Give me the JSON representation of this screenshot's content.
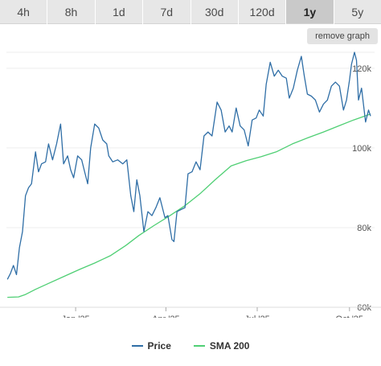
{
  "tabs": [
    {
      "label": "4h",
      "active": false
    },
    {
      "label": "8h",
      "active": false
    },
    {
      "label": "1d",
      "active": false
    },
    {
      "label": "7d",
      "active": false
    },
    {
      "label": "30d",
      "active": false
    },
    {
      "label": "120d",
      "active": false
    },
    {
      "label": "1y",
      "active": true
    },
    {
      "label": "5y",
      "active": false
    }
  ],
  "remove_graph_label": "remove graph",
  "colors": {
    "price": "#2f6ea6",
    "sma": "#4fcf74",
    "grid": "#eeeeee",
    "axis": "#555555"
  },
  "chart_data": {
    "type": "line",
    "x_ticks": [
      "Jan '25",
      "Apr '25",
      "Jul '25",
      "Oct '25"
    ],
    "y_ticks": [
      "60k",
      "80k",
      "100k",
      "120k"
    ],
    "ylim": [
      60000,
      124000
    ],
    "series": [
      {
        "name": "Price",
        "color": "#2f6ea6",
        "points": [
          [
            "2024-10-25",
            67000
          ],
          [
            "2024-10-28",
            68500
          ],
          [
            "2024-10-31",
            70500
          ],
          [
            "2024-11-03",
            68200
          ],
          [
            "2024-11-06",
            75000
          ],
          [
            "2024-11-09",
            79000
          ],
          [
            "2024-11-12",
            88000
          ],
          [
            "2024-11-15",
            90000
          ],
          [
            "2024-11-18",
            91000
          ],
          [
            "2024-11-22",
            99000
          ],
          [
            "2024-11-25",
            94000
          ],
          [
            "2024-11-28",
            96000
          ],
          [
            "2024-12-02",
            96500
          ],
          [
            "2024-12-05",
            101000
          ],
          [
            "2024-12-09",
            97000
          ],
          [
            "2024-12-13",
            101000
          ],
          [
            "2024-12-17",
            106000
          ],
          [
            "2024-12-20",
            96000
          ],
          [
            "2024-12-24",
            98000
          ],
          [
            "2024-12-27",
            94500
          ],
          [
            "2024-12-30",
            92500
          ],
          [
            "2025-01-03",
            98000
          ],
          [
            "2025-01-07",
            97000
          ],
          [
            "2025-01-10",
            94000
          ],
          [
            "2025-01-13",
            91000
          ],
          [
            "2025-01-16",
            100000
          ],
          [
            "2025-01-20",
            106000
          ],
          [
            "2025-01-24",
            105000
          ],
          [
            "2025-01-28",
            102000
          ],
          [
            "2025-02-01",
            101000
          ],
          [
            "2025-02-03",
            98000
          ],
          [
            "2025-02-07",
            96500
          ],
          [
            "2025-02-12",
            97000
          ],
          [
            "2025-02-17",
            96000
          ],
          [
            "2025-02-21",
            97000
          ],
          [
            "2025-02-25",
            88000
          ],
          [
            "2025-02-28",
            84000
          ],
          [
            "2025-03-03",
            92000
          ],
          [
            "2025-03-06",
            88000
          ],
          [
            "2025-03-10",
            79000
          ],
          [
            "2025-03-14",
            84000
          ],
          [
            "2025-03-18",
            83000
          ],
          [
            "2025-03-22",
            85000
          ],
          [
            "2025-03-26",
            87500
          ],
          [
            "2025-03-31",
            82500
          ],
          [
            "2025-04-03",
            83000
          ],
          [
            "2025-04-07",
            77000
          ],
          [
            "2025-04-09",
            76500
          ],
          [
            "2025-04-12",
            84000
          ],
          [
            "2025-04-16",
            84500
          ],
          [
            "2025-04-20",
            85000
          ],
          [
            "2025-04-23",
            93500
          ],
          [
            "2025-04-27",
            94000
          ],
          [
            "2025-05-01",
            96500
          ],
          [
            "2025-05-05",
            94500
          ],
          [
            "2025-05-09",
            103000
          ],
          [
            "2025-05-13",
            104000
          ],
          [
            "2025-05-17",
            103000
          ],
          [
            "2025-05-22",
            111500
          ],
          [
            "2025-05-26",
            109500
          ],
          [
            "2025-05-30",
            104000
          ],
          [
            "2025-06-03",
            105500
          ],
          [
            "2025-06-06",
            104000
          ],
          [
            "2025-06-10",
            110000
          ],
          [
            "2025-06-14",
            105500
          ],
          [
            "2025-06-18",
            104500
          ],
          [
            "2025-06-22",
            100500
          ],
          [
            "2025-06-26",
            107000
          ],
          [
            "2025-06-30",
            107500
          ],
          [
            "2025-07-03",
            109500
          ],
          [
            "2025-07-07",
            108000
          ],
          [
            "2025-07-10",
            116000
          ],
          [
            "2025-07-14",
            121500
          ],
          [
            "2025-07-18",
            118000
          ],
          [
            "2025-07-22",
            119500
          ],
          [
            "2025-07-26",
            118000
          ],
          [
            "2025-07-30",
            117500
          ],
          [
            "2025-08-02",
            112500
          ],
          [
            "2025-08-06",
            115000
          ],
          [
            "2025-08-10",
            119500
          ],
          [
            "2025-08-14",
            123000
          ],
          [
            "2025-08-17",
            118000
          ],
          [
            "2025-08-20",
            113500
          ],
          [
            "2025-08-24",
            113000
          ],
          [
            "2025-08-28",
            112000
          ],
          [
            "2025-09-01",
            109000
          ],
          [
            "2025-09-05",
            111000
          ],
          [
            "2025-09-09",
            112000
          ],
          [
            "2025-09-13",
            115500
          ],
          [
            "2025-09-17",
            116500
          ],
          [
            "2025-09-21",
            115500
          ],
          [
            "2025-09-25",
            109500
          ],
          [
            "2025-09-28",
            112000
          ],
          [
            "2025-10-01",
            117000
          ],
          [
            "2025-10-03",
            121000
          ],
          [
            "2025-10-06",
            124000
          ],
          [
            "2025-10-08",
            122000
          ],
          [
            "2025-10-10",
            112000
          ],
          [
            "2025-10-13",
            115000
          ],
          [
            "2025-10-17",
            106500
          ],
          [
            "2025-10-20",
            109500
          ],
          [
            "2025-10-22",
            108000
          ]
        ]
      },
      {
        "name": "SMA 200",
        "color": "#4fcf74",
        "points": [
          [
            "2024-10-25",
            62500
          ],
          [
            "2024-11-05",
            62600
          ],
          [
            "2024-11-12",
            63200
          ],
          [
            "2024-11-22",
            64500
          ],
          [
            "2024-12-05",
            66000
          ],
          [
            "2024-12-20",
            67700
          ],
          [
            "2025-01-05",
            69500
          ],
          [
            "2025-01-20",
            71100
          ],
          [
            "2025-02-05",
            73000
          ],
          [
            "2025-02-20",
            75500
          ],
          [
            "2025-03-05",
            78000
          ],
          [
            "2025-03-20",
            80500
          ],
          [
            "2025-04-05",
            83000
          ],
          [
            "2025-04-20",
            85500
          ],
          [
            "2025-05-05",
            88500
          ],
          [
            "2025-05-20",
            92000
          ],
          [
            "2025-06-05",
            95500
          ],
          [
            "2025-06-20",
            96800
          ],
          [
            "2025-07-05",
            97800
          ],
          [
            "2025-07-20",
            99000
          ],
          [
            "2025-08-05",
            101000
          ],
          [
            "2025-08-20",
            102500
          ],
          [
            "2025-09-05",
            104000
          ],
          [
            "2025-09-20",
            105500
          ],
          [
            "2025-10-05",
            107000
          ],
          [
            "2025-10-22",
            108500
          ]
        ]
      }
    ],
    "grid": true,
    "legend": "bottom-center"
  }
}
